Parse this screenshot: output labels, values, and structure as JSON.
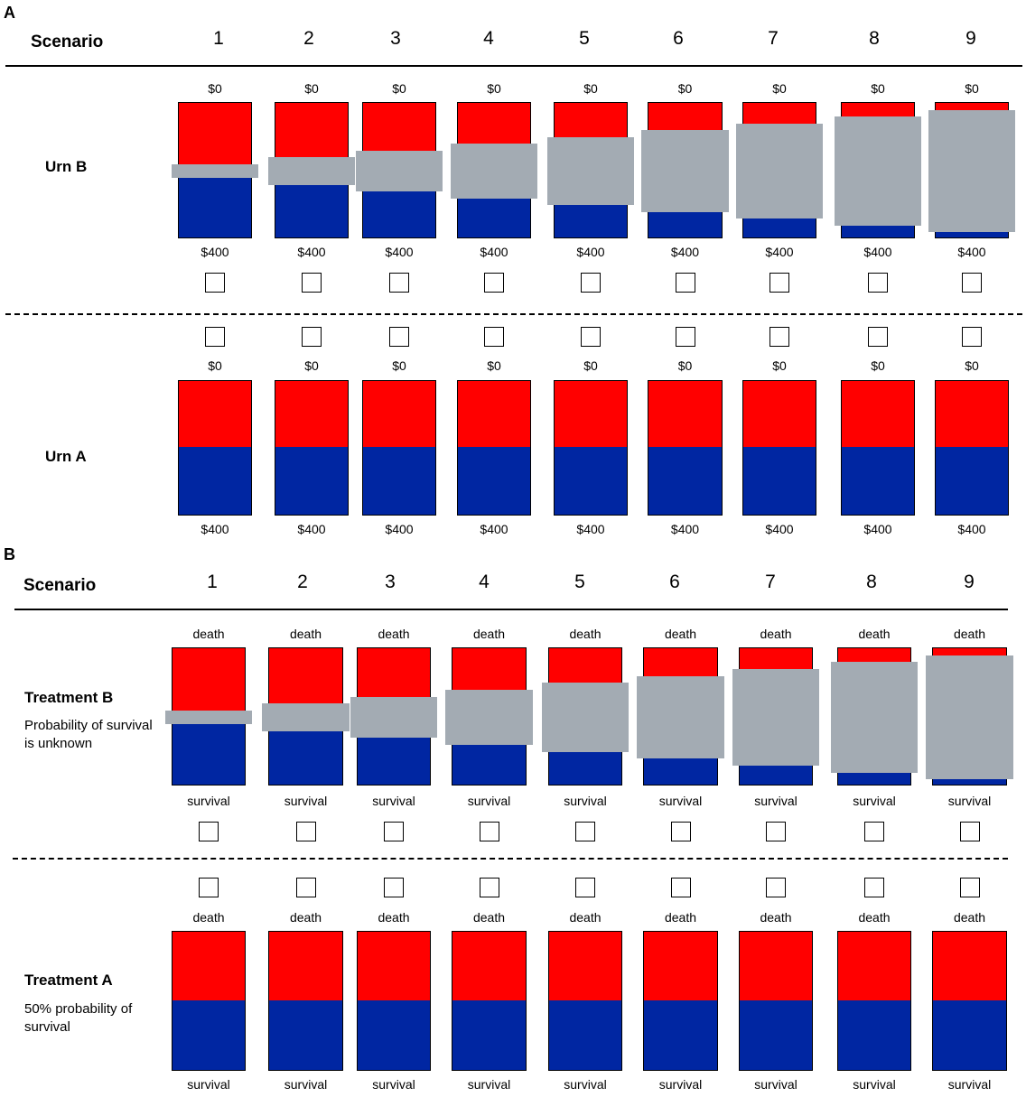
{
  "colors": {
    "red": "#ff0000",
    "blue": "#0026a2",
    "gray": "#a3abb3"
  },
  "scenario_label": "Scenario",
  "scenarios": [
    "1",
    "2",
    "3",
    "4",
    "5",
    "6",
    "7",
    "8",
    "9"
  ],
  "ambiguity_fractions": [
    0.1,
    0.2,
    0.3,
    0.4,
    0.5,
    0.6,
    0.7,
    0.8,
    0.9
  ],
  "known_probability": 0.5,
  "panel_a": {
    "letter": "A",
    "urn_b": {
      "name": "Urn B",
      "top_label": "$0",
      "bottom_label": "$400"
    },
    "urn_a": {
      "name": "Urn A",
      "top_label": "$0",
      "bottom_label": "$400"
    }
  },
  "panel_b": {
    "letter": "B",
    "treatment_b": {
      "name": "Treatment B",
      "description": "Probability of survival is unknown",
      "top_label": "death",
      "bottom_label": "survival"
    },
    "treatment_a": {
      "name": "Treatment A",
      "description": "50% probability of survival",
      "top_label": "death",
      "bottom_label": "survival"
    }
  }
}
